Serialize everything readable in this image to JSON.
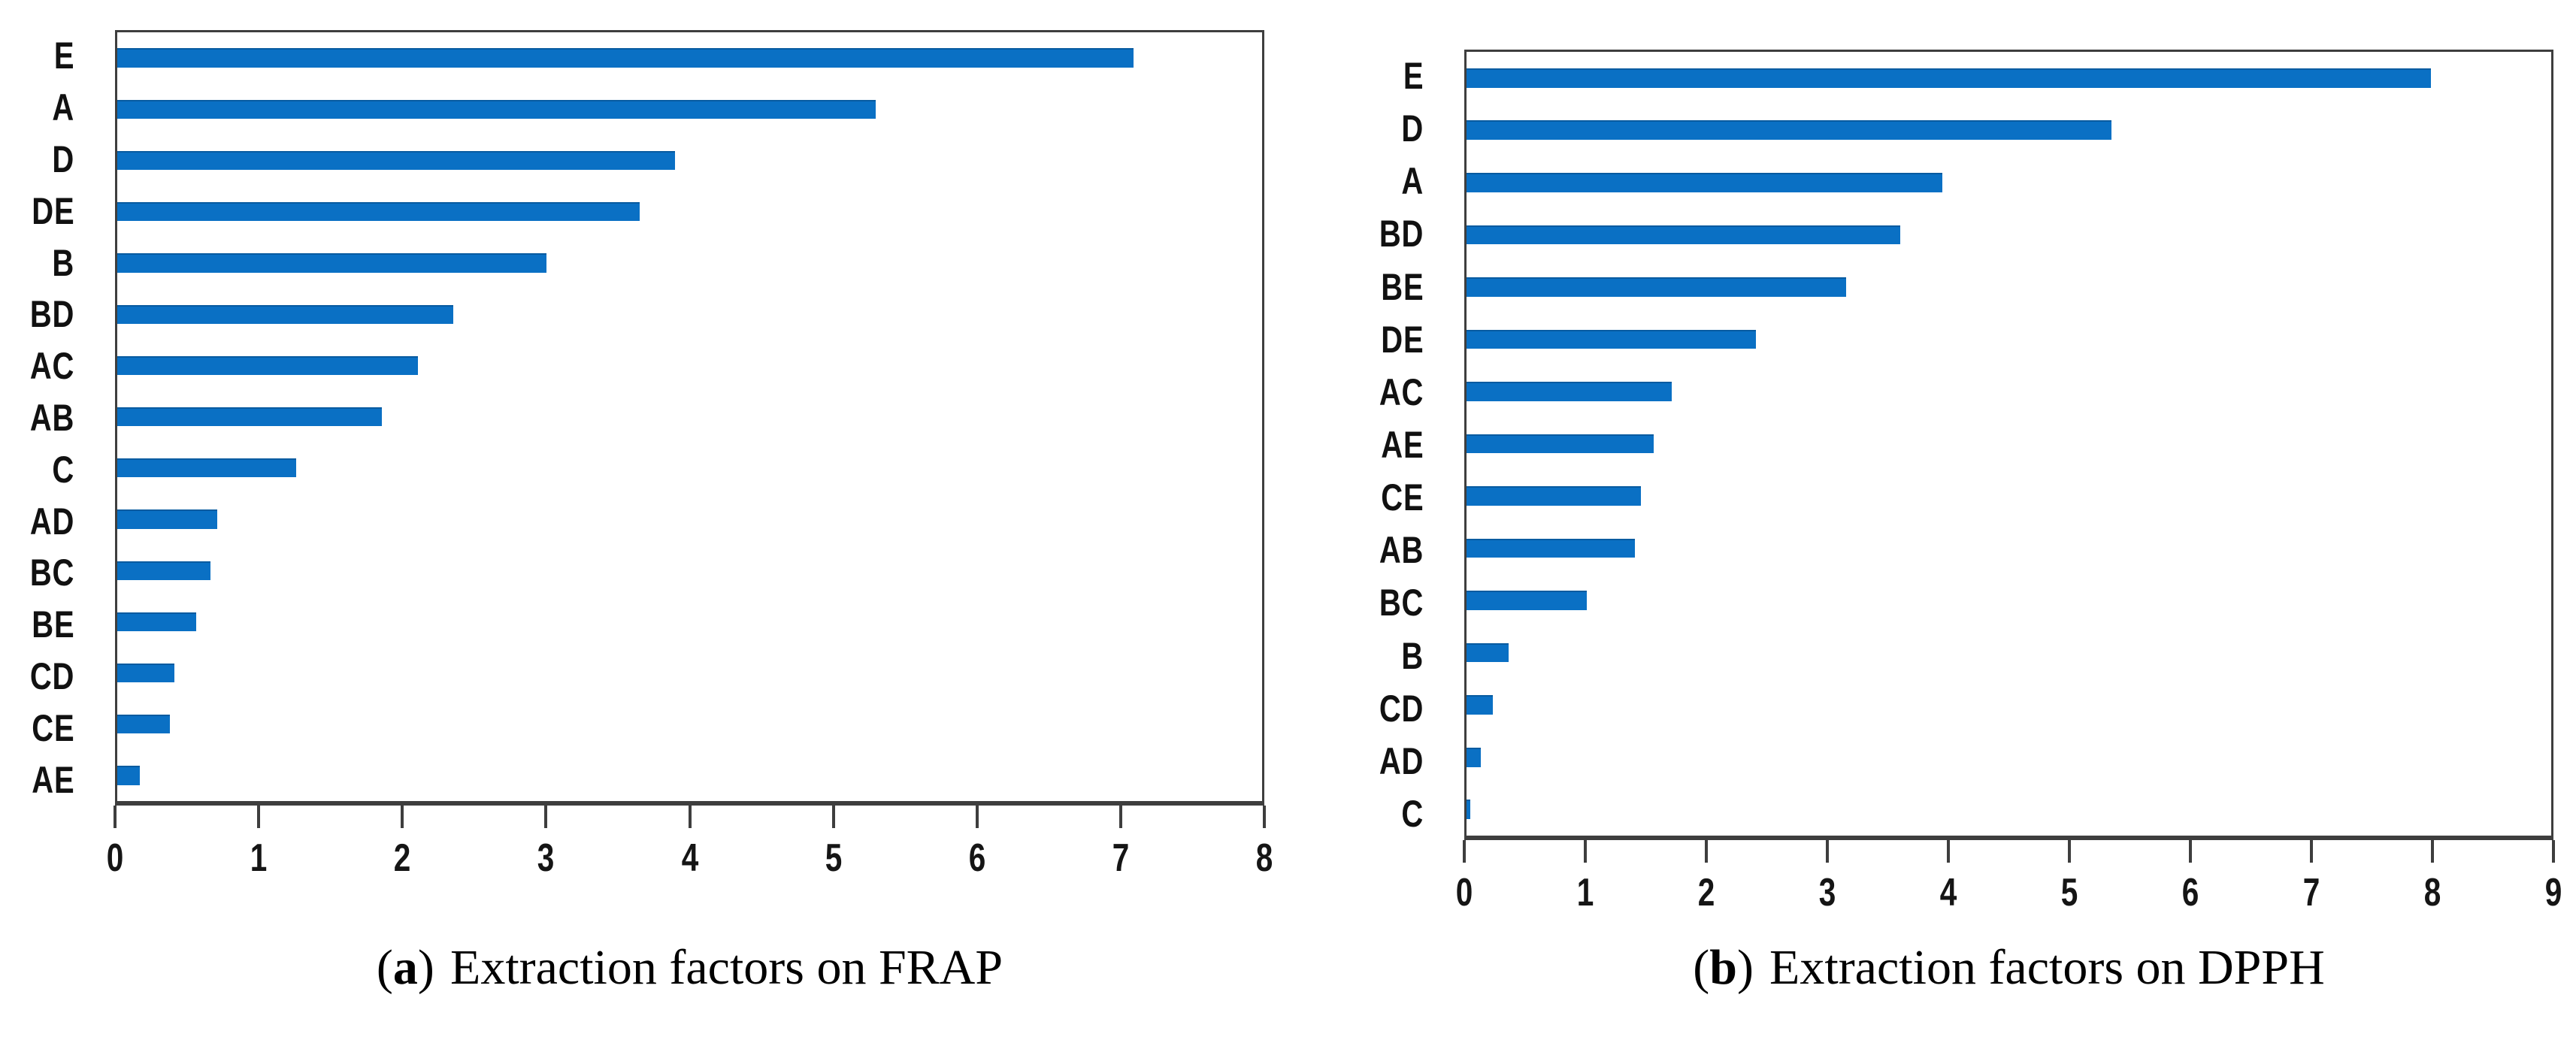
{
  "figure": {
    "panels": [
      {
        "id": "frap",
        "caption": {
          "open": "(",
          "letter": "a",
          "close": ")",
          "text": "Extraction factors on FRAP"
        }
      },
      {
        "id": "dpph",
        "caption": {
          "open": "(",
          "letter": "b",
          "close": ")",
          "text": "Extraction factors on DPPH"
        }
      }
    ],
    "colors": {
      "bar": "#0a70c4",
      "frame": "#3e3e3e",
      "text": "#111111"
    }
  },
  "chart_data": [
    {
      "type": "bar",
      "orientation": "horizontal",
      "title": "(a) Extraction factors on FRAP",
      "categories": [
        "E",
        "A",
        "D",
        "DE",
        "B",
        "BD",
        "AC",
        "AB",
        "C",
        "AD",
        "BC",
        "BE",
        "CD",
        "CE",
        "AE"
      ],
      "values": [
        7.1,
        5.3,
        3.9,
        3.65,
        3.0,
        2.35,
        2.1,
        1.85,
        1.25,
        0.7,
        0.65,
        0.55,
        0.4,
        0.37,
        0.16
      ],
      "xlabel": "",
      "ylabel": "",
      "xlim": [
        0,
        8
      ],
      "xticks": [
        0,
        1,
        2,
        3,
        4,
        5,
        6,
        7,
        8
      ],
      "grid": false,
      "legend": false,
      "bar_color": "#0a70c4"
    },
    {
      "type": "bar",
      "orientation": "horizontal",
      "title": "(b) Extraction factors on DPPH",
      "categories": [
        "E",
        "D",
        "A",
        "BD",
        "BE",
        "DE",
        "AC",
        "AE",
        "CE",
        "AB",
        "BC",
        "B",
        "CD",
        "AD",
        "C"
      ],
      "values": [
        8.0,
        5.35,
        3.95,
        3.6,
        3.15,
        2.4,
        1.7,
        1.55,
        1.45,
        1.4,
        1.0,
        0.35,
        0.22,
        0.12,
        0.03
      ],
      "xlabel": "",
      "ylabel": "",
      "xlim": [
        0,
        9
      ],
      "xticks": [
        0,
        1,
        2,
        3,
        4,
        5,
        6,
        7,
        8,
        9
      ],
      "grid": false,
      "legend": false,
      "bar_color": "#0a70c4"
    }
  ]
}
